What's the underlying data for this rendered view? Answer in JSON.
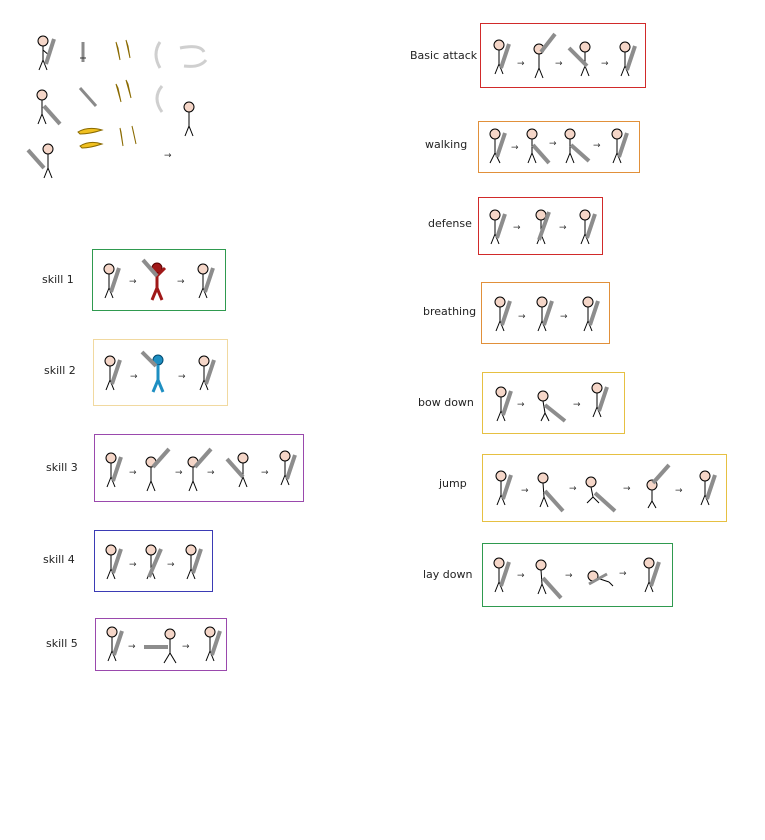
{
  "sheet": {
    "arrow_glyph": "→",
    "colors": {
      "green": "#2f9a4f",
      "yellow": "#f1d9a0",
      "purple": "#9a49ad",
      "blue": "#3b3bb5",
      "red": "#d12a2a",
      "orange": "#e1903a",
      "gold": "#e6c042",
      "skill1_figure": "#a01818",
      "skill2_figure": "#1e8fc2",
      "effect_gold": "#f0c020",
      "effect_grey": "#cfcfcf"
    }
  },
  "left_groups": [
    {
      "label": "skill 1"
    },
    {
      "label": "skill 2"
    },
    {
      "label": "skill 3"
    },
    {
      "label": "skill 4"
    },
    {
      "label": "skill 5"
    }
  ],
  "right_groups": [
    {
      "label": "Basic attack"
    },
    {
      "label": "walking"
    },
    {
      "label": "defense"
    },
    {
      "label": "breathing"
    },
    {
      "label": "bow down"
    },
    {
      "label": "jump"
    },
    {
      "label": "lay down"
    }
  ]
}
